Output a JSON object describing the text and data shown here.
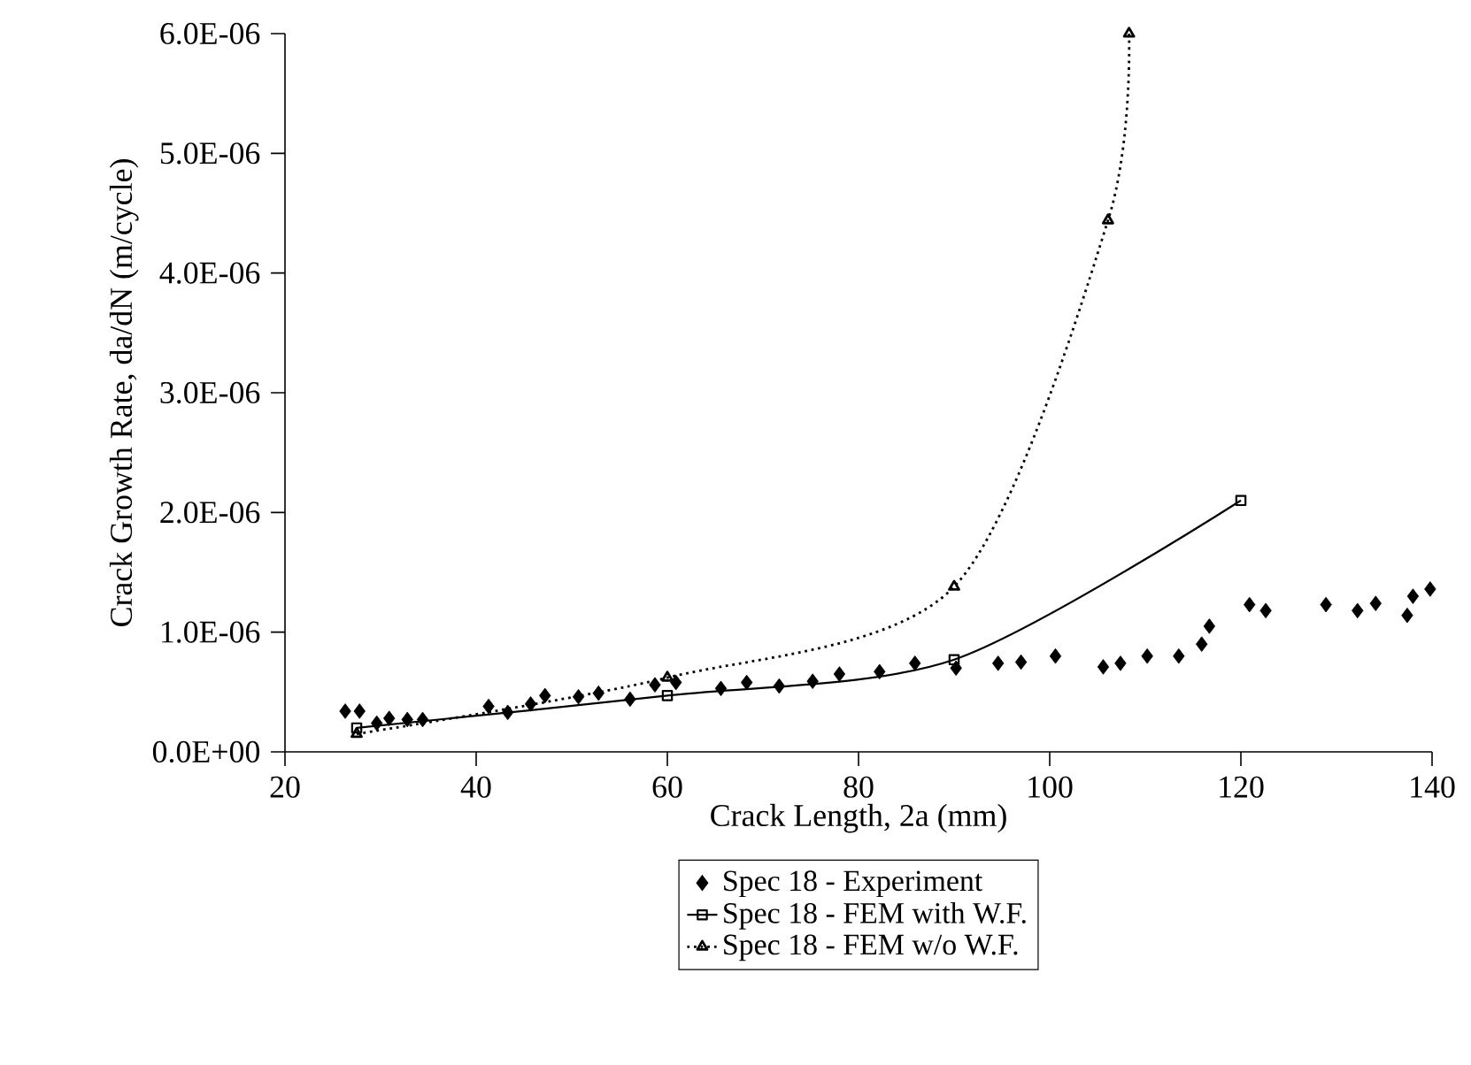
{
  "chart_data": {
    "type": "line",
    "xlabel": "Crack Length, 2a (mm)",
    "ylabel": "Crack Growth Rate, da/dN (m/cycle)",
    "xlim": [
      20,
      140
    ],
    "xticks": [
      20,
      40,
      60,
      80,
      100,
      120,
      140
    ],
    "ylim": [
      0,
      6e-06
    ],
    "yticks": [
      {
        "value": 0,
        "label": "0.0E+00"
      },
      {
        "value": 1e-06,
        "label": "1.0E-06"
      },
      {
        "value": 2e-06,
        "label": "2.0E-06"
      },
      {
        "value": 3e-06,
        "label": "3.0E-06"
      },
      {
        "value": 4e-06,
        "label": "4.0E-06"
      },
      {
        "value": 5e-06,
        "label": "5.0E-06"
      },
      {
        "value": 6e-06,
        "label": "6.0E-06"
      }
    ],
    "grid": false,
    "legend": "bottom",
    "series": [
      {
        "name": "Spec 18 - Experiment",
        "type": "scatter",
        "marker": "diamond",
        "color": "#000000",
        "x": [
          26.3,
          27.8,
          29.6,
          30.9,
          32.8,
          34.4,
          41.3,
          43.3,
          45.7,
          47.2,
          50.7,
          52.8,
          56.1,
          58.7,
          60.9,
          65.6,
          68.3,
          71.7,
          75.2,
          78.0,
          82.2,
          85.9,
          90.2,
          94.6,
          97.0,
          100.6,
          105.6,
          107.4,
          110.2,
          113.5,
          115.9,
          116.7,
          120.9,
          122.6,
          128.9,
          132.2,
          134.1,
          137.4,
          138.0,
          139.8
        ],
        "values": [
          3.4e-07,
          3.4e-07,
          2.4e-07,
          2.8e-07,
          2.7e-07,
          2.7e-07,
          3.8e-07,
          3.3e-07,
          4e-07,
          4.7e-07,
          4.6e-07,
          4.9e-07,
          4.4e-07,
          5.6e-07,
          5.8e-07,
          5.3e-07,
          5.8e-07,
          5.5e-07,
          5.9e-07,
          6.5e-07,
          6.7e-07,
          7.4e-07,
          7e-07,
          7.4e-07,
          7.5e-07,
          8e-07,
          7.1e-07,
          7.4e-07,
          8e-07,
          8e-07,
          9e-07,
          1.05e-06,
          1.23e-06,
          1.18e-06,
          1.23e-06,
          1.18e-06,
          1.24e-06,
          1.14e-06,
          1.3e-06,
          1.36e-06
        ]
      },
      {
        "name": "Spec 18 - FEM with W.F.",
        "type": "line",
        "marker": "square",
        "line_style": "solid",
        "color": "#000000",
        "x": [
          27.5,
          60,
          90,
          120
        ],
        "values": [
          2e-07,
          4.7e-07,
          7.7e-07,
          2.1e-06
        ]
      },
      {
        "name": "Spec 18 - FEM w/o W.F.",
        "type": "line",
        "marker": "triangle",
        "line_style": "dotted",
        "color": "#000000",
        "x": [
          27.5,
          60,
          90,
          106.1,
          108.3
        ],
        "values": [
          1.5e-07,
          6.2e-07,
          1.38e-06,
          4.44e-06,
          6e-06
        ]
      }
    ]
  }
}
